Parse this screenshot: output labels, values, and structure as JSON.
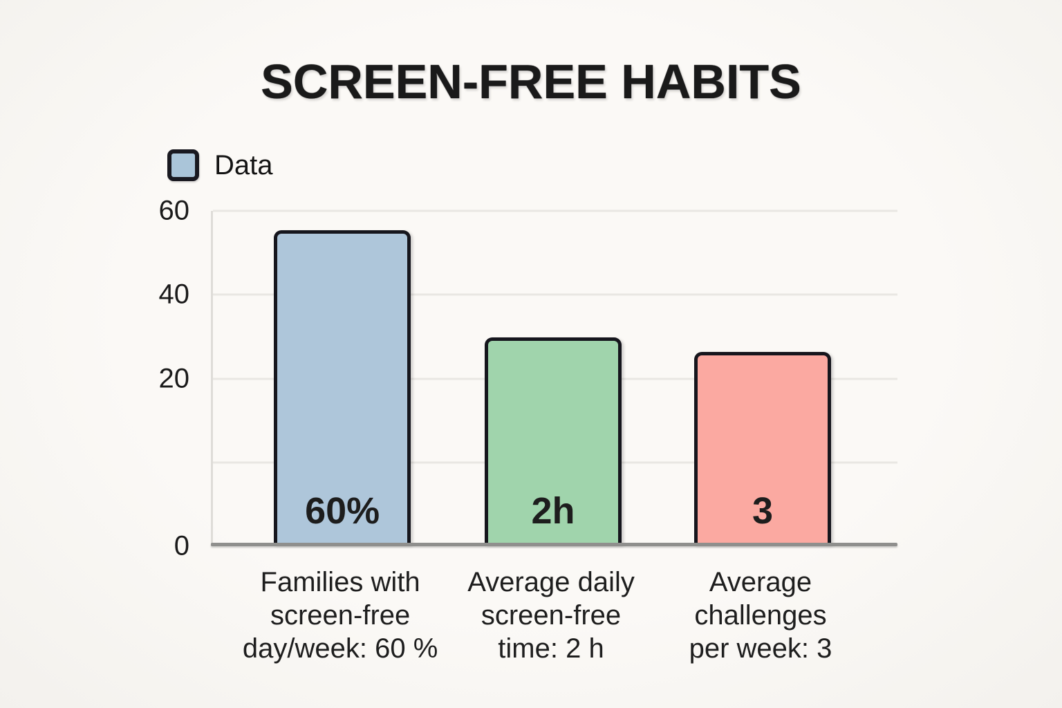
{
  "title": "SCREEN-FREE HABITS",
  "legend": {
    "label": "Data",
    "swatch_color": "#aac5d9"
  },
  "y_axis": {
    "ticks": [
      {
        "label": "60",
        "pos_pct": 0
      },
      {
        "label": "40",
        "pos_pct": 25
      },
      {
        "label": "20",
        "pos_pct": 50
      },
      {
        "label": "",
        "pos_pct": 75
      },
      {
        "label": "0",
        "pos_pct": 100
      }
    ]
  },
  "chart_data": {
    "type": "bar",
    "title": "SCREEN-FREE HABITS",
    "xlabel": "",
    "ylabel": "",
    "ylim": [
      0,
      60
    ],
    "yticks_labeled": [
      0,
      20,
      40,
      60
    ],
    "grid": true,
    "legend_entries": [
      "Data"
    ],
    "legend_position": "top-left",
    "categories": [
      "Families with screen-free day/week: 60 %",
      "Average daily screen-free time: 2 h",
      "Average challenges per week: 3"
    ],
    "series": [
      {
        "name": "Data",
        "stated_values": [
          "60%",
          "2 h",
          "3"
        ],
        "values_as_drawn_on_axis": [
          55,
          29,
          26
        ]
      }
    ],
    "bars": [
      {
        "value_label": "60%",
        "category_lines": [
          "Families with",
          "screen-free",
          "day/week: 60 %"
        ],
        "fill": "#aec6da",
        "height_pct": 93.8,
        "center_pct": 18.9
      },
      {
        "value_label": "2h",
        "category_lines": [
          "Average daily",
          "screen-free",
          "time: 2 h"
        ],
        "fill": "#a0d4ac",
        "height_pct": 61.9,
        "center_pct": 49.7
      },
      {
        "value_label": "3",
        "category_lines": [
          "Average",
          "challenges",
          "per week: 3"
        ],
        "fill": "#fba9a1",
        "height_pct": 57.5,
        "center_pct": 80.3
      }
    ]
  }
}
